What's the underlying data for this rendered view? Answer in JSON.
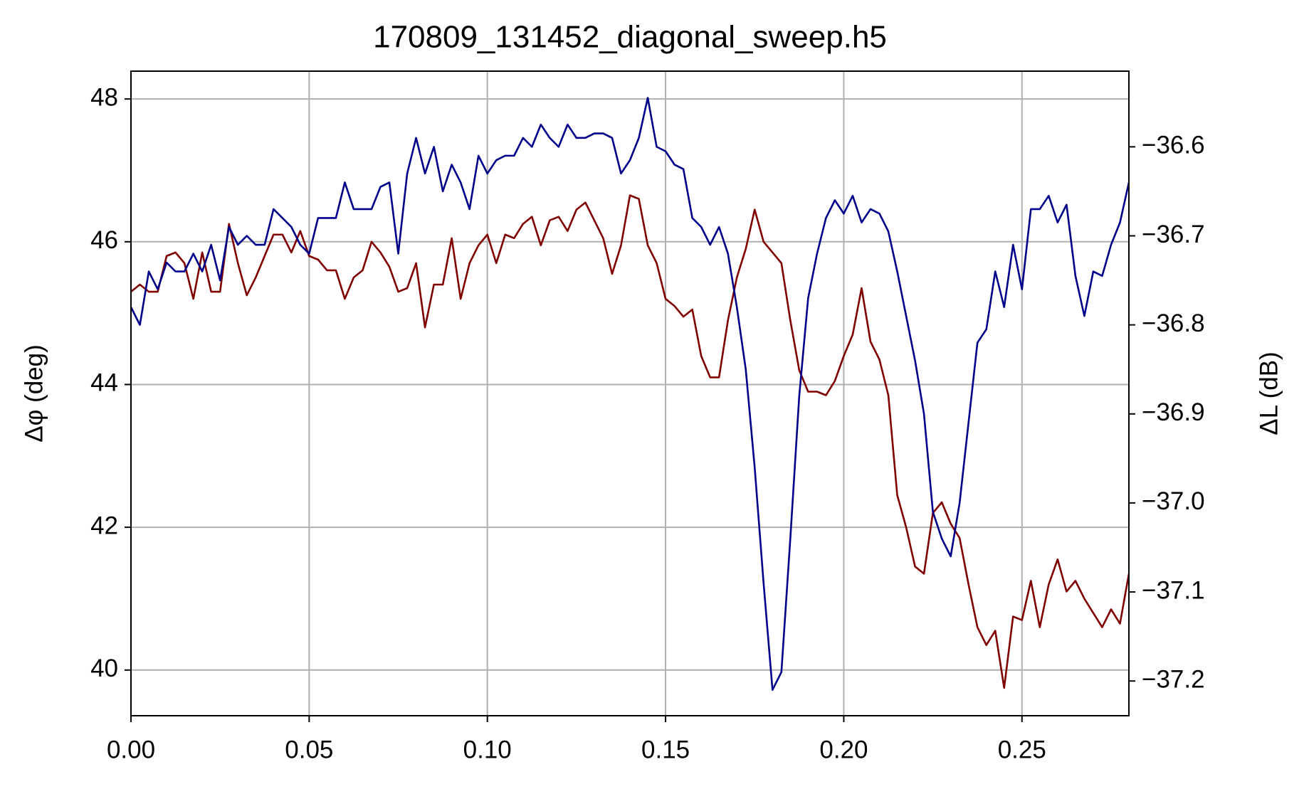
{
  "chart_data": {
    "type": "line",
    "title": "170809_131452_diagonal_sweep.h5",
    "ylabel": "Δφ (deg)",
    "y2label": "ΔL (dB)",
    "grid": true,
    "xlim": [
      0,
      0.28
    ],
    "xticks": [
      {
        "value": 0,
        "label": "0.00"
      },
      0.05,
      {
        "value": 0.1,
        "label": "0.10"
      },
      0.15,
      {
        "value": 0.2,
        "label": "0.20"
      },
      0.25
    ],
    "ylim": [
      39.36,
      48.39
    ],
    "yticks": [
      40,
      42,
      44,
      46,
      48
    ],
    "y2lim": [
      -37.239,
      -36.515
    ],
    "y2ticks": [
      {
        "value": -36.6,
        "label": "−36.6"
      },
      {
        "value": -36.7,
        "label": "−36.7"
      },
      {
        "value": -36.8,
        "label": "−36.8"
      },
      {
        "value": -36.9,
        "label": "−36.9"
      },
      {
        "value": -37.0,
        "label": "−37.0"
      },
      {
        "value": -37.1,
        "label": "−37.1"
      },
      {
        "value": -37.2,
        "label": "−37.2"
      }
    ],
    "x": [
      0,
      0.0025,
      0.005,
      0.0075,
      0.01,
      0.0125,
      0.015,
      0.0175,
      0.02,
      0.0225,
      0.025,
      0.0275,
      0.03,
      0.0325,
      0.035,
      0.0375,
      0.04,
      0.0425,
      0.045,
      0.0475,
      0.05,
      0.0525,
      0.055,
      0.0575,
      0.06,
      0.0625,
      0.065,
      0.0675,
      0.07,
      0.0725,
      0.075,
      0.0775,
      0.08,
      0.0825,
      0.085,
      0.0875,
      0.09,
      0.0925,
      0.095,
      0.0975,
      0.1,
      0.1025,
      0.105,
      0.1075,
      0.11,
      0.1125,
      0.115,
      0.1175,
      0.12,
      0.1225,
      0.125,
      0.1275,
      0.13,
      0.1325,
      0.135,
      0.1375,
      0.14,
      0.1425,
      0.145,
      0.1475,
      0.15,
      0.1525,
      0.155,
      0.1575,
      0.16,
      0.1625,
      0.165,
      0.1675,
      0.17,
      0.1725,
      0.175,
      0.1775,
      0.18,
      0.1825,
      0.185,
      0.1875,
      0.19,
      0.1925,
      0.195,
      0.1975,
      0.2,
      0.2025,
      0.205,
      0.2075,
      0.21,
      0.2125,
      0.215,
      0.2175,
      0.22,
      0.2225,
      0.225,
      0.2275,
      0.23,
      0.2325,
      0.235,
      0.2375,
      0.24,
      0.2425,
      0.245,
      0.2475,
      0.25,
      0.2525,
      0.255,
      0.2575,
      0.26,
      0.2625,
      0.265,
      0.2675,
      0.27,
      0.2725,
      0.275,
      0.2775,
      0.28
    ],
    "series": [
      {
        "color": "#800000",
        "values": [
          45.3,
          45.4,
          45.3,
          45.3,
          45.8,
          45.85,
          45.7,
          45.2,
          45.85,
          45.3,
          45.3,
          46.25,
          45.7,
          45.25,
          45.5,
          45.8,
          46.1,
          46.1,
          45.85,
          46.15,
          45.8,
          45.75,
          45.6,
          45.6,
          45.2,
          45.5,
          45.6,
          46.0,
          45.85,
          45.65,
          45.3,
          45.35,
          45.7,
          44.8,
          45.4,
          45.4,
          46.05,
          45.2,
          45.7,
          45.95,
          46.1,
          45.7,
          46.1,
          46.05,
          46.25,
          46.35,
          45.95,
          46.3,
          46.35,
          46.15,
          46.45,
          46.55,
          46.3,
          46.05,
          45.55,
          45.95,
          46.65,
          46.6,
          45.95,
          45.7,
          45.2,
          45.1,
          44.95,
          45.05,
          44.4,
          44.1,
          44.1,
          44.9,
          45.5,
          45.9,
          46.45,
          46.0,
          45.85,
          45.7,
          44.9,
          44.2,
          43.9,
          43.9,
          43.85,
          44.05,
          44.4,
          44.7,
          45.35,
          44.6,
          44.35,
          43.85,
          42.45,
          42.0,
          41.45,
          41.35,
          42.2,
          42.35,
          42.05,
          41.85,
          41.2,
          40.6,
          40.35,
          40.55,
          39.75,
          40.75,
          40.7,
          41.25,
          40.6,
          41.2,
          41.55,
          41.1,
          41.25,
          41.0,
          40.8,
          40.6,
          40.85,
          40.65,
          41.35
        ]
      },
      {
        "color": "#00008b",
        "axis": "y2",
        "values": [
          -36.78,
          -36.8,
          -36.74,
          -36.76,
          -36.73,
          -36.74,
          -36.74,
          -36.72,
          -36.74,
          -36.71,
          -36.75,
          -36.69,
          -36.71,
          -36.7,
          -36.71,
          -36.71,
          -36.67,
          -36.68,
          -36.69,
          -36.71,
          -36.72,
          -36.68,
          -36.68,
          -36.68,
          -36.64,
          -36.67,
          -36.67,
          -36.67,
          -36.645,
          -36.64,
          -36.72,
          -36.63,
          -36.59,
          -36.63,
          -36.6,
          -36.65,
          -36.62,
          -36.64,
          -36.67,
          -36.61,
          -36.63,
          -36.615,
          -36.61,
          -36.61,
          -36.59,
          -36.6,
          -36.575,
          -36.59,
          -36.6,
          -36.575,
          -36.59,
          -36.59,
          -36.585,
          -36.585,
          -36.59,
          -36.63,
          -36.615,
          -36.59,
          -36.545,
          -36.6,
          -36.605,
          -36.62,
          -36.625,
          -36.68,
          -36.69,
          -36.71,
          -36.69,
          -36.72,
          -36.78,
          -36.85,
          -36.96,
          -37.09,
          -37.21,
          -37.19,
          -37.04,
          -36.88,
          -36.77,
          -36.72,
          -36.68,
          -36.66,
          -36.675,
          -36.655,
          -36.685,
          -36.67,
          -36.675,
          -36.695,
          -36.74,
          -36.79,
          -36.84,
          -36.9,
          -37.01,
          -37.04,
          -37.06,
          -37.0,
          -36.91,
          -36.82,
          -36.805,
          -36.74,
          -36.78,
          -36.71,
          -36.76,
          -36.67,
          -36.67,
          -36.655,
          -36.685,
          -36.665,
          -36.745,
          -36.79,
          -36.74,
          -36.745,
          -36.71,
          -36.685,
          -36.64
        ]
      }
    ]
  }
}
